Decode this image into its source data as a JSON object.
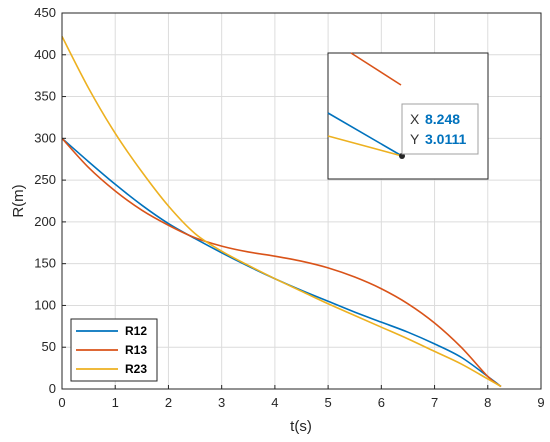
{
  "chart_data": {
    "type": "line",
    "title": "",
    "xlabel": "t(s)",
    "ylabel": "R(m)",
    "xlim": [
      0,
      9
    ],
    "ylim": [
      0,
      450
    ],
    "xticks": [
      0,
      1,
      2,
      3,
      4,
      5,
      6,
      7,
      8,
      9
    ],
    "yticks": [
      0,
      50,
      100,
      150,
      200,
      250,
      300,
      350,
      400,
      450
    ],
    "grid": true,
    "legend_position": "bottom-left",
    "series": [
      {
        "name": "R12",
        "color": "#0072BD",
        "x": [
          0,
          0.5,
          1,
          1.5,
          2,
          2.5,
          3,
          3.5,
          4,
          4.5,
          5,
          5.5,
          6,
          6.5,
          7,
          7.5,
          8,
          8.248
        ],
        "y": [
          300,
          272,
          245,
          220,
          198,
          180,
          163,
          147,
          132,
          118,
          105,
          92,
          80,
          68,
          54,
          38,
          15,
          3.0111
        ]
      },
      {
        "name": "R13",
        "color": "#D95319",
        "x": [
          0,
          0.5,
          1,
          1.5,
          2,
          2.5,
          3,
          3.5,
          4,
          4.5,
          5,
          5.5,
          6,
          6.5,
          7,
          7.5,
          8,
          8.248
        ],
        "y": [
          300,
          265,
          237,
          214,
          196,
          181,
          171,
          164,
          159,
          153,
          145,
          134,
          120,
          102,
          79,
          50,
          15,
          3
        ]
      },
      {
        "name": "R23",
        "color": "#EDB120",
        "x": [
          0,
          0.5,
          1,
          1.5,
          2,
          2.5,
          3,
          3.5,
          4,
          4.5,
          5,
          5.5,
          6,
          6.5,
          7,
          7.5,
          8,
          8.248
        ],
        "y": [
          422,
          360,
          306,
          260,
          219,
          186,
          165,
          148,
          132,
          117,
          102,
          88,
          74,
          60,
          45,
          30,
          12,
          3
        ]
      }
    ],
    "datatip": {
      "x_label": "X",
      "x_value": "8.248",
      "y_label": "Y",
      "y_value": "3.0111",
      "color": "#0072BD"
    }
  }
}
